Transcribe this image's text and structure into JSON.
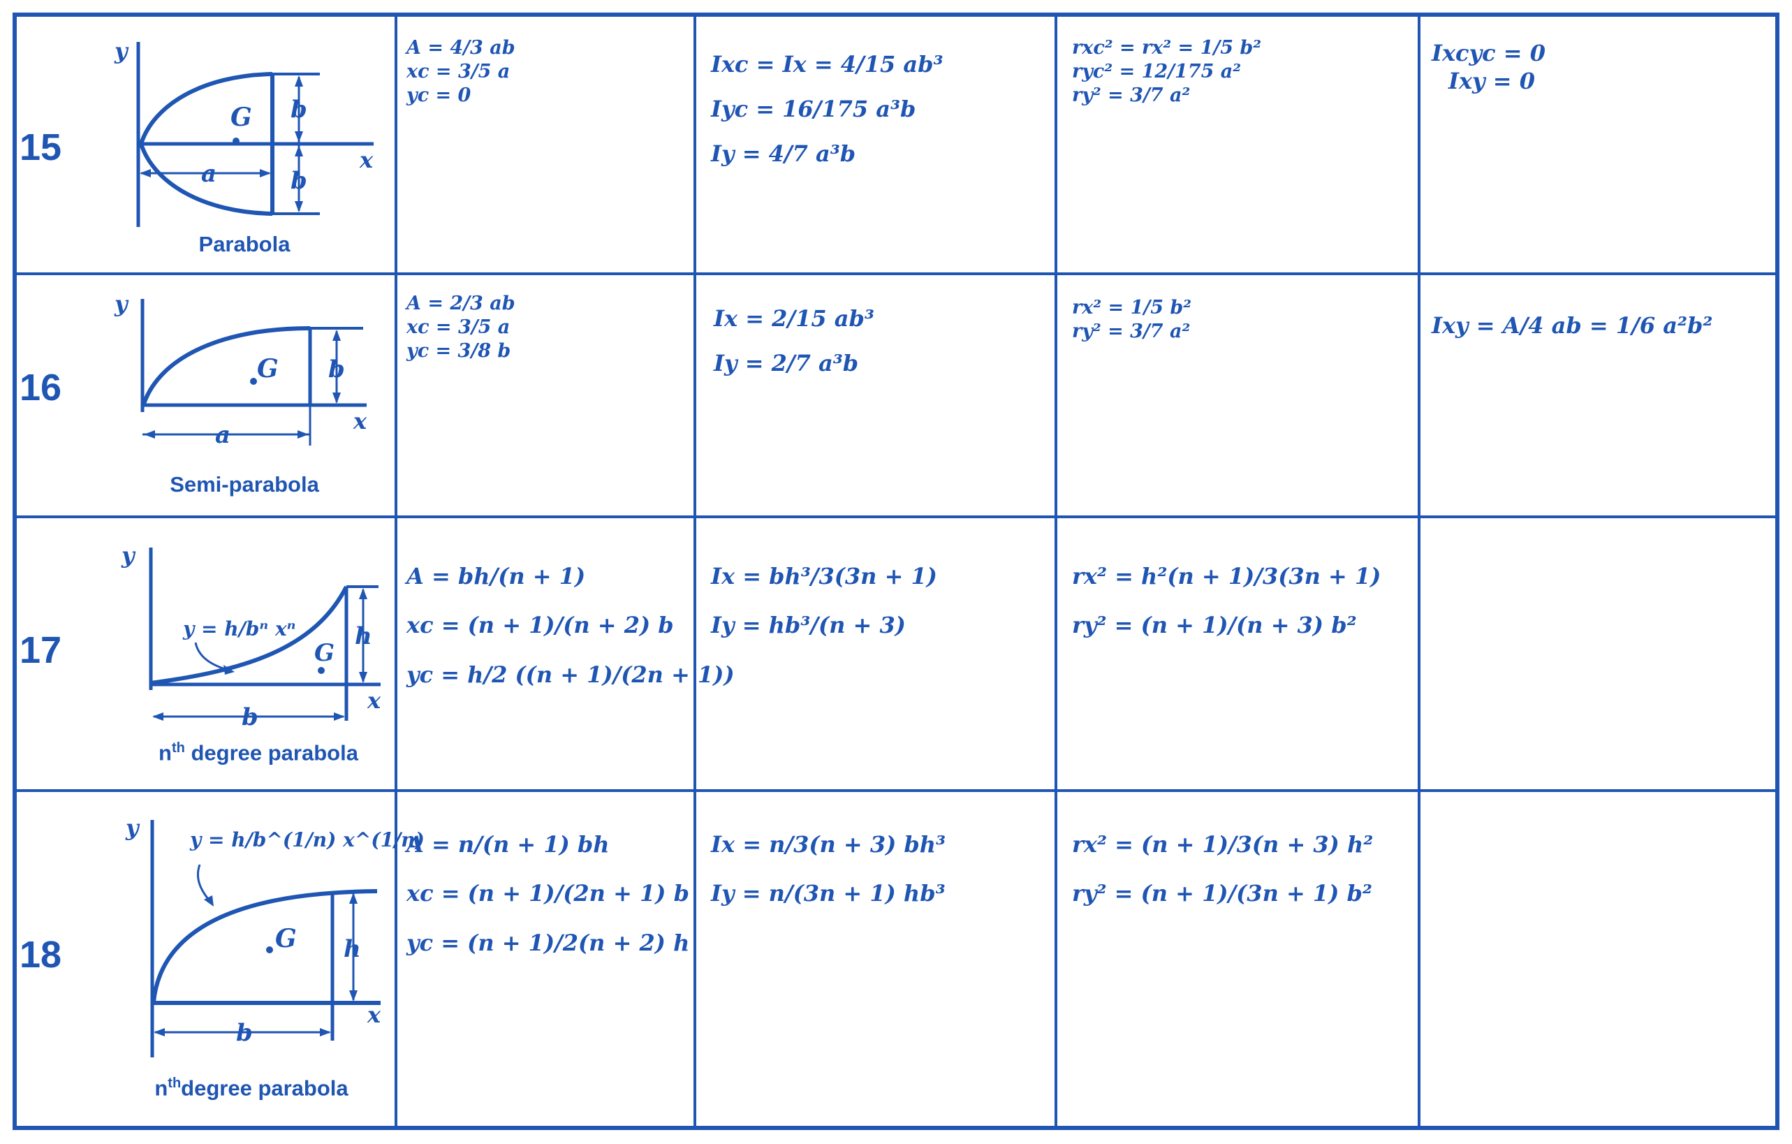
{
  "rows": [
    {
      "number": "15",
      "caption": "Parabola",
      "labels": {
        "y": "y",
        "x": "x",
        "a": "a",
        "b_top": "b",
        "b_bottom": "b",
        "centroid": "G"
      },
      "area": [
        "A = 4/3 ab",
        "xc = 3/5 a",
        "yc = 0"
      ],
      "inertia": [
        "Ixc = Ix = 4/15 ab³",
        "Iyc = 16/175 a³b",
        "Iy = 4/7 a³b"
      ],
      "radius": [
        "rxc² = rx² = 1/5 b²",
        "ryc² = 12/175 a²",
        "ry² = 3/7 a²"
      ],
      "product": [
        "Ixcyc = 0",
        "Ixy = 0"
      ]
    },
    {
      "number": "16",
      "caption": "Semi-parabola",
      "labels": {
        "y": "y",
        "x": "x",
        "a": "a",
        "b": "b",
        "centroid": "G"
      },
      "area": [
        "A = 2/3 ab",
        "xc = 3/5 a",
        "yc = 3/8 b"
      ],
      "inertia": [
        "Ix = 2/15 ab³",
        "Iy = 2/7 a³b"
      ],
      "radius": [
        "rx² = 1/5 b²",
        "ry² = 3/7 a²"
      ],
      "product": [
        "Ixy = A/4 ab = 1/6 a²b²"
      ]
    },
    {
      "number": "17",
      "caption_main": "n",
      "caption_sup": "th",
      "caption_rest": " degree parabola",
      "labels": {
        "y": "y",
        "x": "x",
        "b": "b",
        "h": "h",
        "centroid": "G",
        "equation": "y = h/bⁿ xⁿ"
      },
      "area": [
        "A = bh/(n + 1)",
        "xc = (n + 1)/(n + 2) b",
        "yc = h/2 ((n + 1)/(2n + 1))"
      ],
      "inertia": [
        "Ix = bh³/3(3n + 1)",
        "Iy = hb³/(n + 3)"
      ],
      "radius": [
        "rx² = h²(n + 1)/3(3n + 1)",
        "ry² = (n + 1)/(n + 3) b²"
      ],
      "product": []
    },
    {
      "number": "18",
      "caption_main": "n",
      "caption_sup": "th",
      "caption_rest": "degree parabola",
      "labels": {
        "y": "y",
        "x": "x",
        "b": "b",
        "h": "h",
        "centroid": "G",
        "equation": "y = h/b^(1/n) x^(1/n)"
      },
      "area": [
        "A = n/(n + 1) bh",
        "xc = (n + 1)/(2n + 1) b",
        "yc = (n + 1)/2(n + 2) h"
      ],
      "inertia": [
        "Ix = n/3(n + 3) bh³",
        "Iy = n/(3n + 1) hb³"
      ],
      "radius": [
        "rx² = (n + 1)/3(n + 3) h²",
        "ry² = (n + 1)/(3n + 1) b²"
      ],
      "product": []
    }
  ],
  "colors": {
    "ink": "#1f55b3",
    "paper": "#ffffff"
  }
}
